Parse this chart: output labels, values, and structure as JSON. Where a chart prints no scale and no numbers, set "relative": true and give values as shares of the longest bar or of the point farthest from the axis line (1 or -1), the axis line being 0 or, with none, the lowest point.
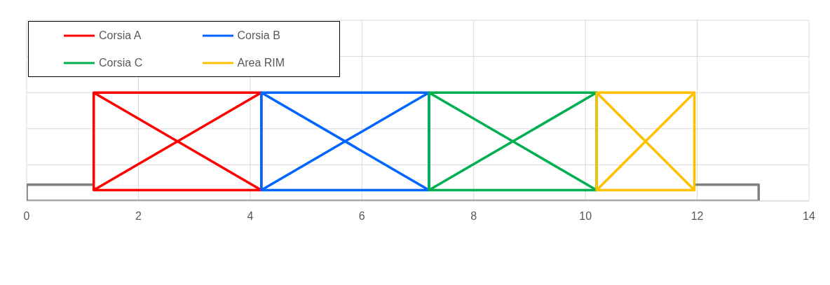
{
  "chart_data": {
    "type": "line",
    "relative": true,
    "xlim": [
      0,
      14
    ],
    "xticks": [
      0,
      2,
      4,
      6,
      8,
      10,
      12,
      14
    ],
    "grid": true,
    "legend": "top left",
    "marker": "none",
    "line_style": "solid",
    "series": [
      {
        "color": "#808080",
        "x": [
          1.2,
          0,
          0,
          13.1,
          13.1,
          11.95
        ],
        "values": [
          0.15,
          0.15,
          0,
          0,
          0.15,
          0.15
        ]
      },
      {
        "name": "Corsia A",
        "color": "#ff0000",
        "x": [
          1.2,
          4.2,
          4.2,
          1.2,
          1.2,
          4.2,
          4.2,
          1.2
        ],
        "values": [
          0.1,
          0.1,
          1,
          1,
          0.1,
          1,
          0.1,
          1
        ]
      },
      {
        "name": "Corsia B",
        "color": "#0066ff",
        "x": [
          4.2,
          7.2,
          7.2,
          4.2,
          4.2,
          7.2,
          7.2,
          4.2
        ],
        "values": [
          0.1,
          0.1,
          1,
          1,
          0.1,
          1,
          0.1,
          1
        ]
      },
      {
        "name": "Corsia C",
        "color": "#00b050",
        "x": [
          7.2,
          10.2,
          10.2,
          7.2,
          7.2,
          10.2,
          10.2,
          7.2
        ],
        "values": [
          0.1,
          0.1,
          1,
          1,
          0.1,
          1,
          0.1,
          1
        ]
      },
      {
        "name": "Area RIM",
        "color": "#ffc000",
        "x": [
          10.2,
          11.95,
          11.95,
          10.2,
          10.2,
          11.95,
          11.95,
          10.2
        ],
        "values": [
          0.1,
          0.1,
          1,
          1,
          0.1,
          1,
          0.1,
          1
        ]
      }
    ]
  }
}
